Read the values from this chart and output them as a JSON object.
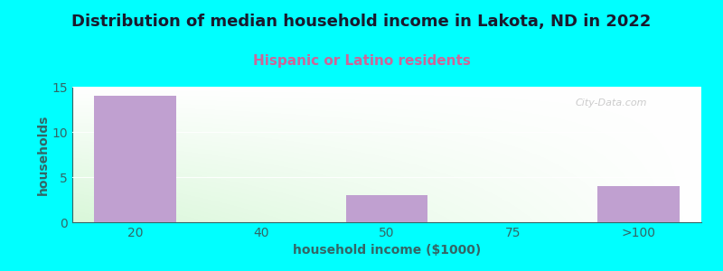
{
  "title": "Distribution of median household income in Lakota, ND in 2022",
  "subtitle": "Hispanic or Latino residents",
  "xlabel": "household income ($1000)",
  "ylabel": "households",
  "background_color": "#00FFFF",
  "plot_bg_top_left": "#e8f5e8",
  "plot_bg_top_right": "#f8fff8",
  "plot_bg_bottom_left": "#f0faf0",
  "plot_bg_bottom_right": "#ffffff",
  "bar_color": "#c0a0d0",
  "categories": [
    "20",
    "40",
    "50",
    "75",
    ">100"
  ],
  "x_positions": [
    0,
    1,
    2,
    3,
    4
  ],
  "values": [
    14,
    0,
    3,
    0,
    4
  ],
  "ylim": [
    0,
    15
  ],
  "yticks": [
    0,
    5,
    10,
    15
  ],
  "title_fontsize": 13,
  "title_color": "#1a1a2e",
  "subtitle_fontsize": 11,
  "subtitle_color": "#cc6699",
  "axis_label_color": "#336666",
  "tick_label_color": "#336666",
  "watermark": "City-Data.com",
  "bar_width": 0.65
}
